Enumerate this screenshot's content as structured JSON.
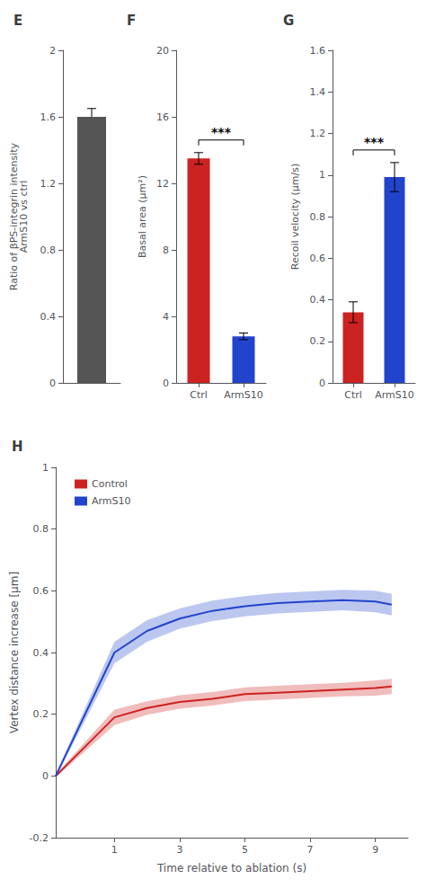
{
  "chart_data": [
    {
      "type": "bar",
      "title": "E",
      "values": [
        1.6
      ],
      "errors_upper": [
        0.05
      ],
      "color": "#555555",
      "ylabel": "Ratio of βPS-integrin intensity\nArmS10 vs ctrl",
      "ylim": [
        0,
        2
      ],
      "yticks": [
        0,
        0.4,
        0.8,
        1.2,
        1.6,
        2.0
      ],
      "tick_labels": "y",
      "grid": false
    },
    {
      "type": "bar",
      "title": "F",
      "categories": [
        "Ctrl",
        "ArmS10"
      ],
      "values": [
        13.5,
        2.8
      ],
      "errors": [
        0.35,
        0.2
      ],
      "colors": [
        "#cc2222",
        "#2244cc"
      ],
      "ylabel": "Basal area (μm²)",
      "ylim": [
        0,
        20
      ],
      "yticks": [
        0,
        4,
        8,
        12,
        16,
        20
      ],
      "annotations": [
        "***"
      ],
      "grid": false
    },
    {
      "type": "bar",
      "title": "G",
      "categories": [
        "Ctrl",
        "ArmS10"
      ],
      "values": [
        0.34,
        0.99
      ],
      "errors": [
        0.05,
        0.07
      ],
      "colors": [
        "#cc2222",
        "#2244cc"
      ],
      "ylabel": "Recoil velocity (μm/s)",
      "ylim": [
        0,
        1.6
      ],
      "yticks": [
        0,
        0.2,
        0.4,
        0.6,
        0.8,
        1.0,
        1.2,
        1.4,
        1.6
      ],
      "annotations": [
        "***"
      ],
      "grid": false
    },
    {
      "type": "line",
      "title": "H",
      "x": [
        -0.8,
        1,
        2,
        3,
        4,
        5,
        6,
        7,
        8,
        9,
        9.5
      ],
      "series": [
        {
          "name": "Control",
          "color": "#cc2222",
          "values": [
            0.0,
            0.19,
            0.22,
            0.24,
            0.25,
            0.265,
            0.27,
            0.275,
            0.28,
            0.285,
            0.29
          ],
          "errors": [
            0.005,
            0.025,
            0.022,
            0.022,
            0.022,
            0.022,
            0.022,
            0.022,
            0.022,
            0.025,
            0.025
          ]
        },
        {
          "name": "ArmS10",
          "color": "#2244cc",
          "values": [
            0.0,
            0.4,
            0.47,
            0.51,
            0.535,
            0.55,
            0.56,
            0.565,
            0.57,
            0.565,
            0.555
          ],
          "errors": [
            0.005,
            0.035,
            0.035,
            0.033,
            0.033,
            0.033,
            0.033,
            0.033,
            0.033,
            0.035,
            0.035
          ]
        }
      ],
      "xlabel": "Time relative to ablation (s)",
      "ylabel": "Vertex distance increase [μm]",
      "xlim": [
        -0.8,
        10
      ],
      "ylim": [
        -0.2,
        1.0
      ],
      "xticks": [
        1,
        3,
        5,
        7,
        9
      ],
      "yticks": [
        -0.2,
        0,
        0.2,
        0.4,
        0.6,
        0.8,
        1.0
      ],
      "legend": "upper left",
      "grid": false
    }
  ]
}
